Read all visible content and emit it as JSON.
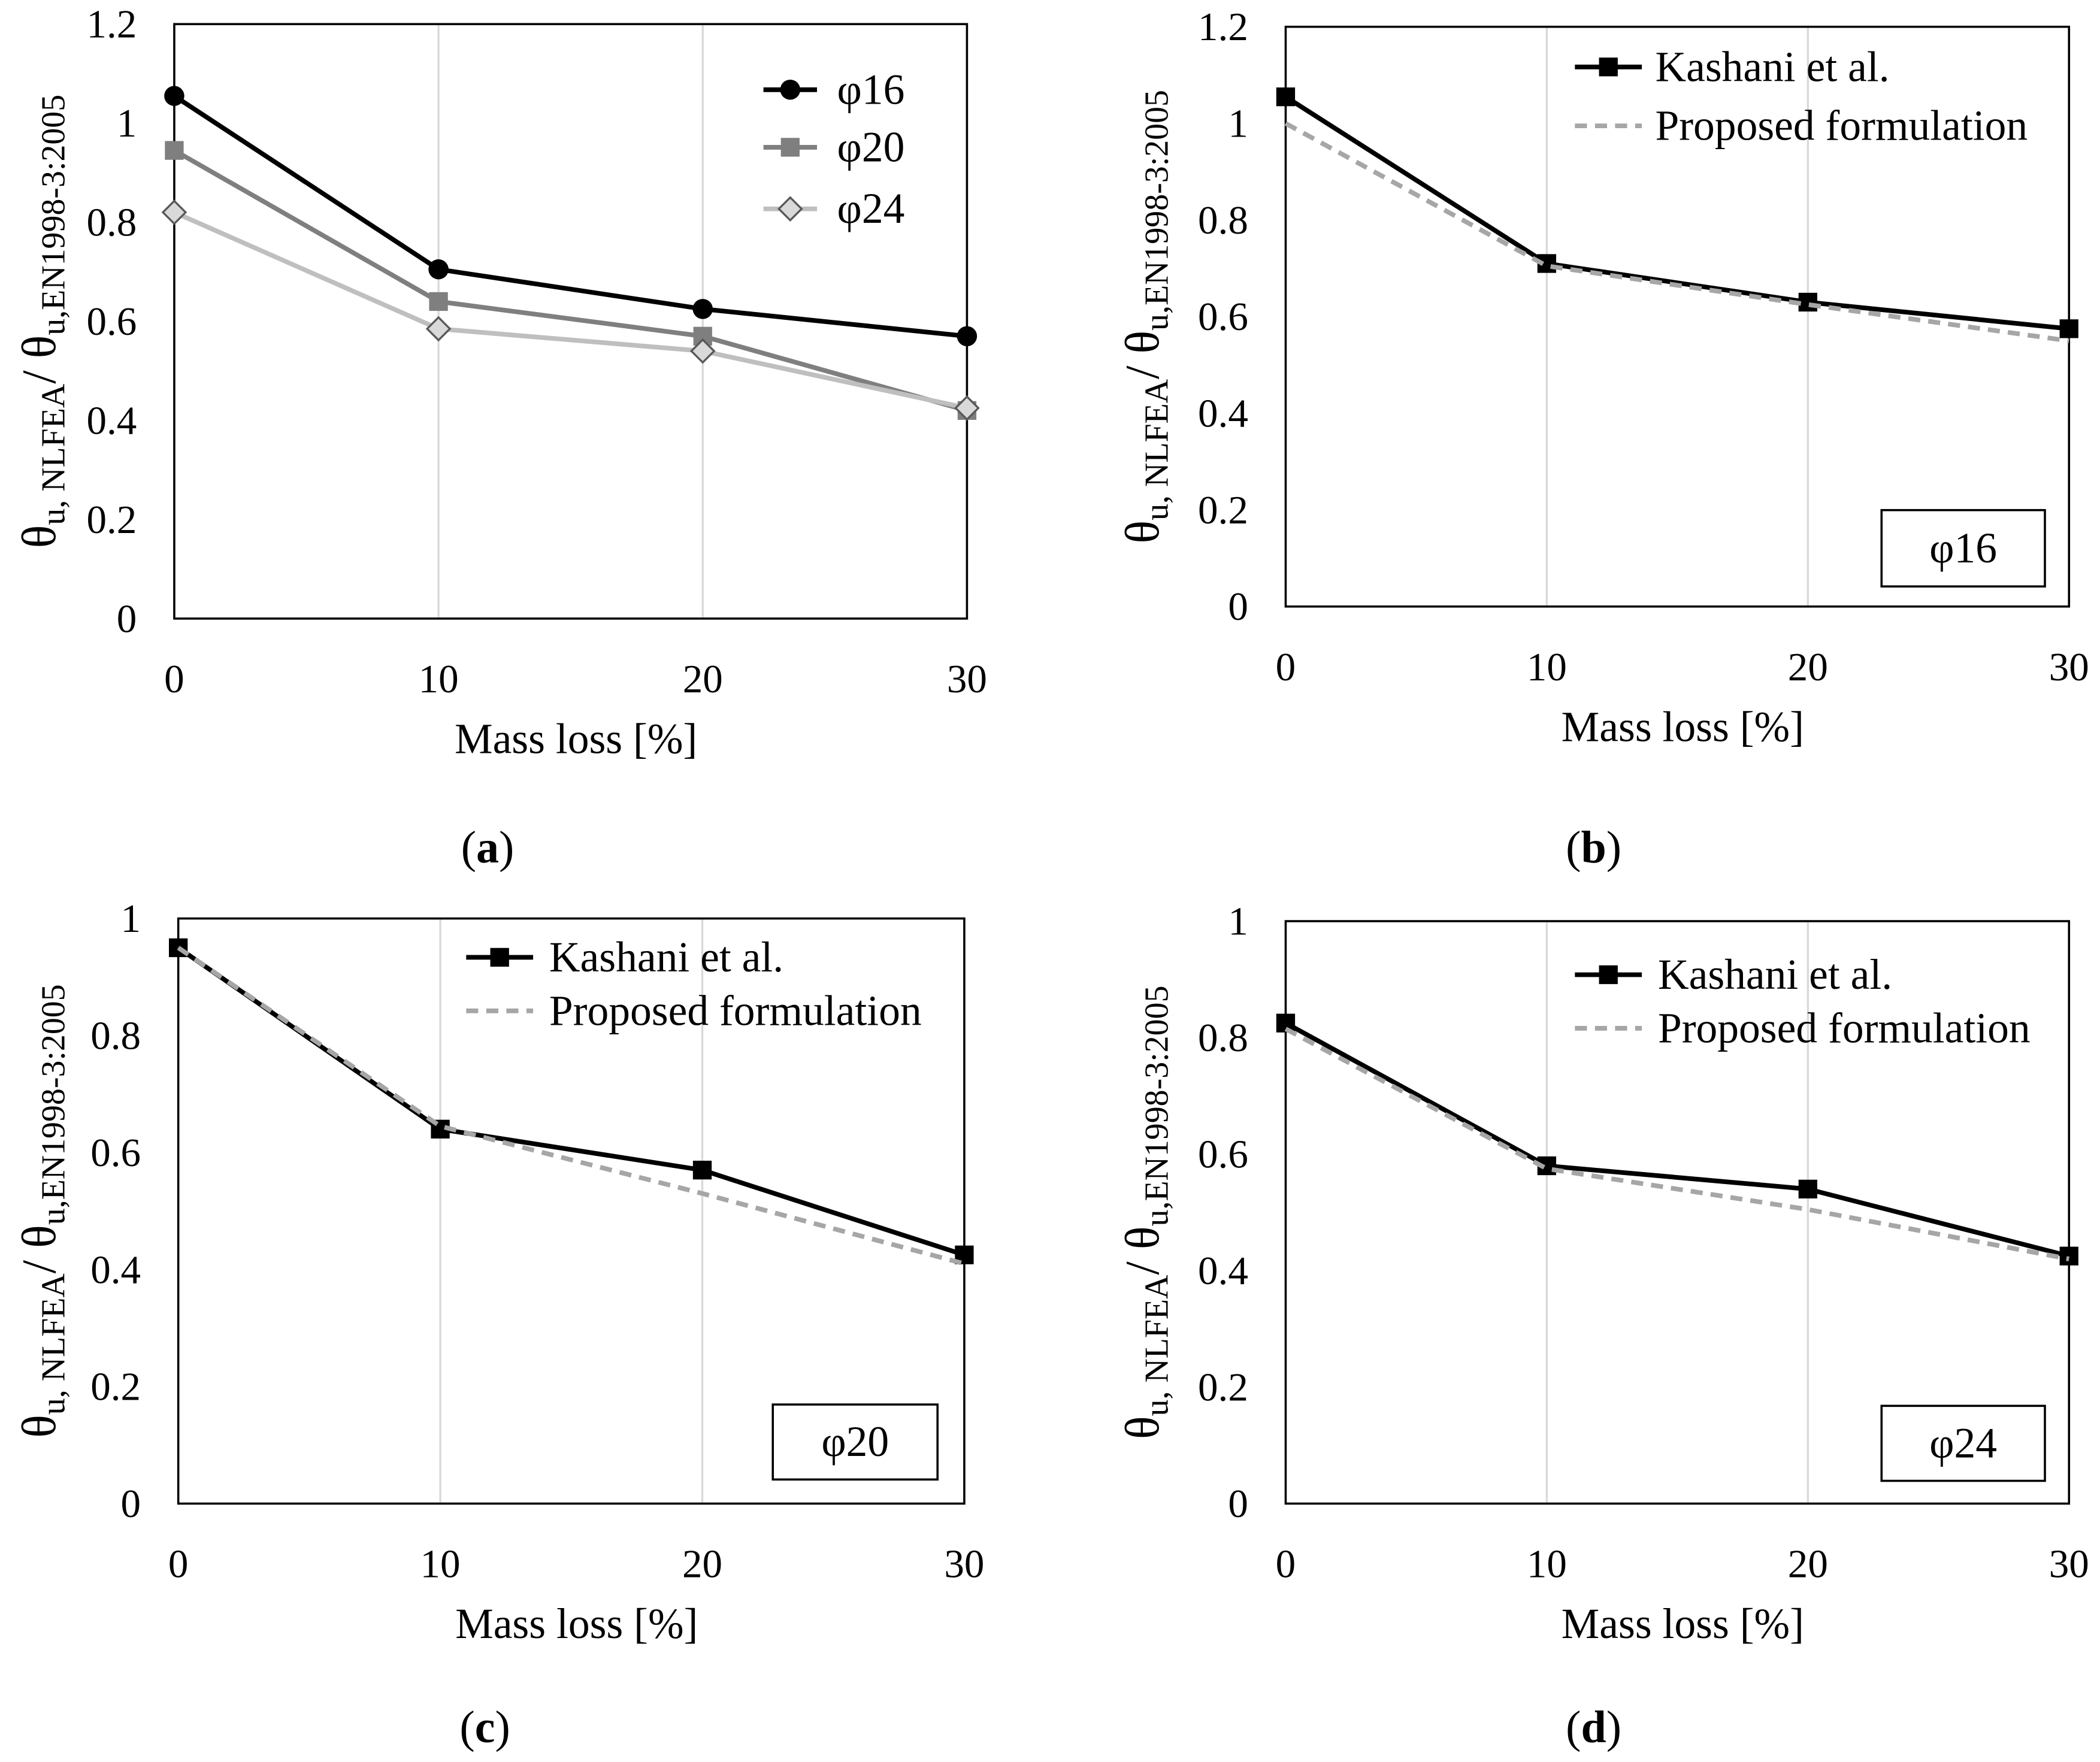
{
  "chart_data": [
    {
      "type": "line",
      "caption": {
        "open": "(",
        "label": "a",
        "close": ")"
      },
      "xlabel": "Mass loss [%]",
      "ylabel_parts": [
        {
          "text": "θ",
          "sub": false
        },
        {
          "text": "u, NLFEA",
          "sub": true
        },
        {
          "text": "/ θ",
          "sub": false
        },
        {
          "text": "u,EN1998-3:2005",
          "sub": true
        }
      ],
      "x": [
        0,
        10,
        20,
        30
      ],
      "xlim": [
        0,
        30
      ],
      "xticks": [
        0,
        10,
        20,
        30
      ],
      "ylim": [
        0,
        1.2
      ],
      "yticks": [
        0,
        0.2,
        0.4,
        0.6,
        0.8,
        1,
        1.2
      ],
      "grid": "vertical",
      "legend": "top-right",
      "series": [
        {
          "name": "φ16",
          "values": [
            1.055,
            0.705,
            0.625,
            0.57
          ],
          "color": "#000000",
          "marker": "circle",
          "line": "solid"
        },
        {
          "name": "φ20",
          "values": [
            0.945,
            0.64,
            0.57,
            0.42
          ],
          "color": "#7f7f7f",
          "marker": "square",
          "line": "solid"
        },
        {
          "name": "φ24",
          "values": [
            0.82,
            0.585,
            0.54,
            0.425
          ],
          "color": "#bfbfbf",
          "marker": "diamond",
          "marker_fill": "#d9d9d9",
          "marker_stroke": "#595959",
          "line": "solid"
        }
      ]
    },
    {
      "type": "line",
      "caption": {
        "open": "(",
        "label": "b",
        "close": ")"
      },
      "xlabel": "Mass loss [%]",
      "ylabel_parts": [
        {
          "text": "θ",
          "sub": false
        },
        {
          "text": "u, NLFEA",
          "sub": true
        },
        {
          "text": "/ θ",
          "sub": false
        },
        {
          "text": "u,EN1998-3:2005",
          "sub": true
        }
      ],
      "x": [
        0,
        10,
        20,
        30
      ],
      "xlim": [
        0,
        30
      ],
      "xticks": [
        0,
        10,
        20,
        30
      ],
      "ylim": [
        0,
        1.2
      ],
      "yticks": [
        0,
        0.2,
        0.4,
        0.6,
        0.8,
        1,
        1.2
      ],
      "grid": "vertical",
      "legend": "top-right",
      "panel_label": "φ16",
      "series": [
        {
          "name": "Kashani et al.",
          "values": [
            1.055,
            0.71,
            0.63,
            0.575
          ],
          "color": "#000000",
          "marker": "square",
          "line": "solid"
        },
        {
          "name": "Proposed formulation",
          "values": [
            1.0,
            0.705,
            0.625,
            0.55
          ],
          "color": "#a6a6a6",
          "marker": "none",
          "line": "dashed"
        }
      ]
    },
    {
      "type": "line",
      "caption": {
        "open": "(",
        "label": "c",
        "close": ")"
      },
      "xlabel": "Mass loss [%]",
      "ylabel_parts": [
        {
          "text": "θ",
          "sub": false
        },
        {
          "text": "u, NLFEA",
          "sub": true
        },
        {
          "text": "/ θ",
          "sub": false
        },
        {
          "text": "u,EN1998-3:2005",
          "sub": true
        }
      ],
      "x": [
        0,
        10,
        20,
        30
      ],
      "xlim": [
        0,
        30
      ],
      "xticks": [
        0,
        10,
        20,
        30
      ],
      "ylim": [
        0,
        1
      ],
      "yticks": [
        0,
        0.2,
        0.4,
        0.6,
        0.8,
        1
      ],
      "grid": "vertical",
      "legend": "top-right",
      "panel_label": "φ20",
      "series": [
        {
          "name": "Kashani et al.",
          "values": [
            0.95,
            0.64,
            0.57,
            0.425
          ],
          "color": "#000000",
          "marker": "square",
          "line": "solid"
        },
        {
          "name": "Proposed formulation",
          "values": [
            0.95,
            0.645,
            0.53,
            0.41
          ],
          "color": "#a6a6a6",
          "marker": "none",
          "line": "dashed"
        }
      ]
    },
    {
      "type": "line",
      "caption": {
        "open": "(",
        "label": "d",
        "close": ")"
      },
      "xlabel": "Mass loss [%]",
      "ylabel_parts": [
        {
          "text": "θ",
          "sub": false
        },
        {
          "text": "u, NLFEA",
          "sub": true
        },
        {
          "text": "/ θ",
          "sub": false
        },
        {
          "text": "u,EN1998-3:2005",
          "sub": true
        }
      ],
      "x": [
        0,
        10,
        20,
        30
      ],
      "xlim": [
        0,
        30
      ],
      "xticks": [
        0,
        10,
        20,
        30
      ],
      "ylim": [
        0,
        1
      ],
      "yticks": [
        0,
        0.2,
        0.4,
        0.6,
        0.8,
        1
      ],
      "grid": "vertical",
      "legend": "top-right",
      "panel_label": "φ24",
      "series": [
        {
          "name": "Kashani et al.",
          "values": [
            0.825,
            0.58,
            0.54,
            0.425
          ],
          "color": "#000000",
          "marker": "square",
          "line": "solid"
        },
        {
          "name": "Proposed formulation",
          "values": [
            0.815,
            0.575,
            0.505,
            0.42
          ],
          "color": "#a6a6a6",
          "marker": "none",
          "line": "dashed"
        }
      ]
    }
  ]
}
